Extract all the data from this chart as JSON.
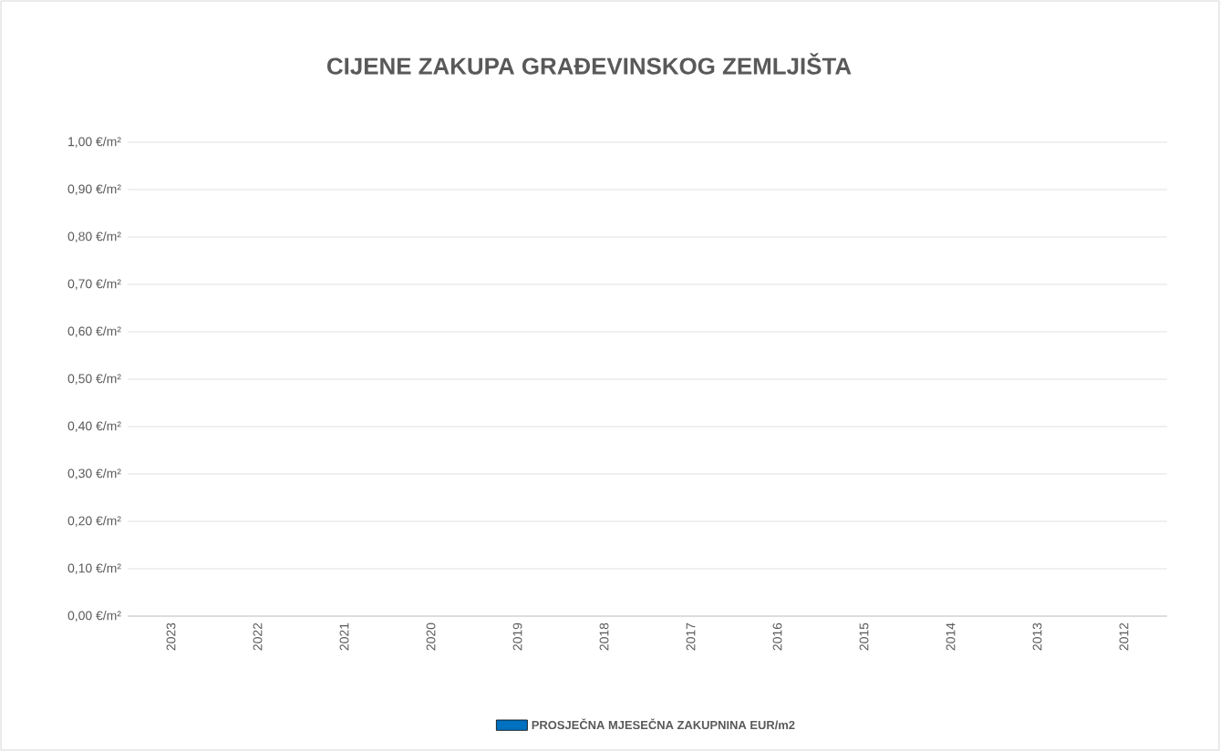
{
  "chart_data": {
    "type": "bar",
    "title": "CIJENE ZAKUPA GRAĐEVINSKOG ZEMLJIŠTA",
    "categories": [
      "2023",
      "2022",
      "2021",
      "2020",
      "2019",
      "2018",
      "2017",
      "2016",
      "2015",
      "2014",
      "2013",
      "2012"
    ],
    "series": [
      {
        "name": "PROSJEČNA MJESEČNA ZAKUPNINA EUR/m2",
        "color": "#0070c0",
        "values": [
          null,
          null,
          null,
          null,
          null,
          null,
          null,
          null,
          null,
          null,
          null,
          null
        ]
      }
    ],
    "ylim": [
      0,
      1
    ],
    "yticks": [
      {
        "value": 0,
        "label": "0,00 €/m²"
      },
      {
        "value": 0.1,
        "label": "0,10 €/m²"
      },
      {
        "value": 0.2,
        "label": "0,20 €/m²"
      },
      {
        "value": 0.3,
        "label": "0,30 €/m²"
      },
      {
        "value": 0.4,
        "label": "0,40 €/m²"
      },
      {
        "value": 0.5,
        "label": "0,50 €/m²"
      },
      {
        "value": 0.6,
        "label": "0,60 €/m²"
      },
      {
        "value": 0.7,
        "label": "0,70 €/m²"
      },
      {
        "value": 0.8,
        "label": "0,80 €/m²"
      },
      {
        "value": 0.9,
        "label": "0,90 €/m²"
      },
      {
        "value": 1,
        "label": "1,00 €/m²"
      }
    ],
    "grid": "y",
    "legend": "bottom"
  }
}
